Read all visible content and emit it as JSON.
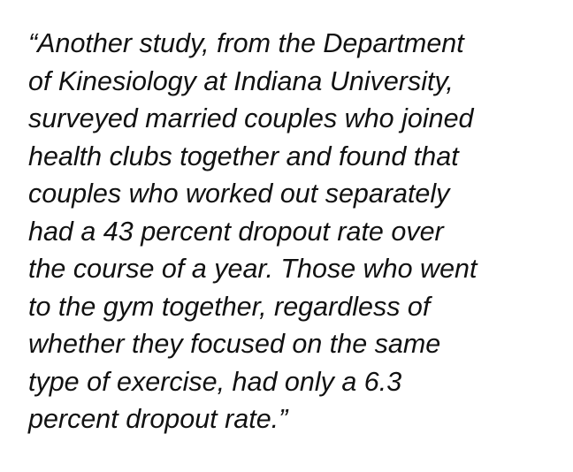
{
  "quote": {
    "lines": [
      "“Another study, from the Department",
      "of Kinesiology at Indiana University,",
      "surveyed married couples who joined",
      "health clubs together and found that",
      "couples who worked out separately",
      "had a 43 percent dropout rate over",
      "the course of a year. Those who went",
      "to the gym together, regardless of",
      "whether they focused on the same",
      "type of exercise, had only a 6.3",
      "percent dropout rate.”"
    ]
  }
}
